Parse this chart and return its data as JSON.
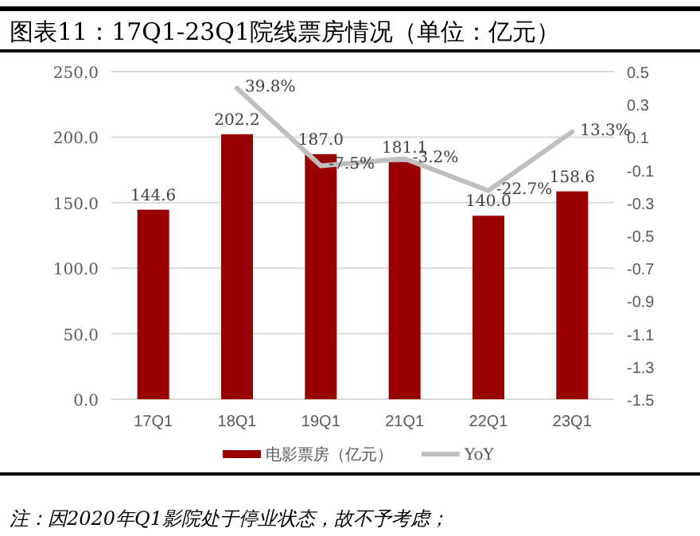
{
  "chart_data": {
    "type": "bar",
    "title": "图表11：17Q1-23Q1院线票房情况（单位：亿元）",
    "categories": [
      "17Q1",
      "18Q1",
      "19Q1",
      "21Q1",
      "22Q1",
      "23Q1"
    ],
    "series": [
      {
        "name": "电影票房（亿元）",
        "color": "#990000",
        "values": [
          144.6,
          202.2,
          187.0,
          181.1,
          140.0,
          158.6
        ],
        "value_labels": [
          "144.6",
          "202.2",
          "187.0",
          "181.1",
          "140.0",
          "158.6"
        ]
      },
      {
        "name": "YoY",
        "type": "line",
        "axis": "y2",
        "color": "#bfbfbf",
        "values": [
          null,
          0.398,
          -0.075,
          -0.032,
          -0.227,
          0.133
        ],
        "value_labels": [
          null,
          "39.8%",
          "-7.5%",
          "-3.2%",
          "-22.7%",
          "13.3%"
        ]
      }
    ],
    "ylim": [
      0,
      250
    ],
    "yticks": [
      {
        "value": 0,
        "label": "0.0"
      },
      {
        "value": 50,
        "label": "50.0"
      },
      {
        "value": 100,
        "label": "100.0"
      },
      {
        "value": 150,
        "label": "150.0"
      },
      {
        "value": 200,
        "label": "200.0"
      },
      {
        "value": 250,
        "label": "250.0"
      }
    ],
    "y2lim": [
      -1.5,
      0.5
    ],
    "y2ticks": [
      -1.5,
      -1.3,
      -1.1,
      -0.9,
      -0.7,
      -0.5,
      -0.3,
      -0.1,
      0.1,
      0.3,
      0.5
    ],
    "grid": "y",
    "legend": "bottom",
    "annotations": [
      "注：因2020年Q1影院处于停业状态，故不予考虑；"
    ]
  }
}
